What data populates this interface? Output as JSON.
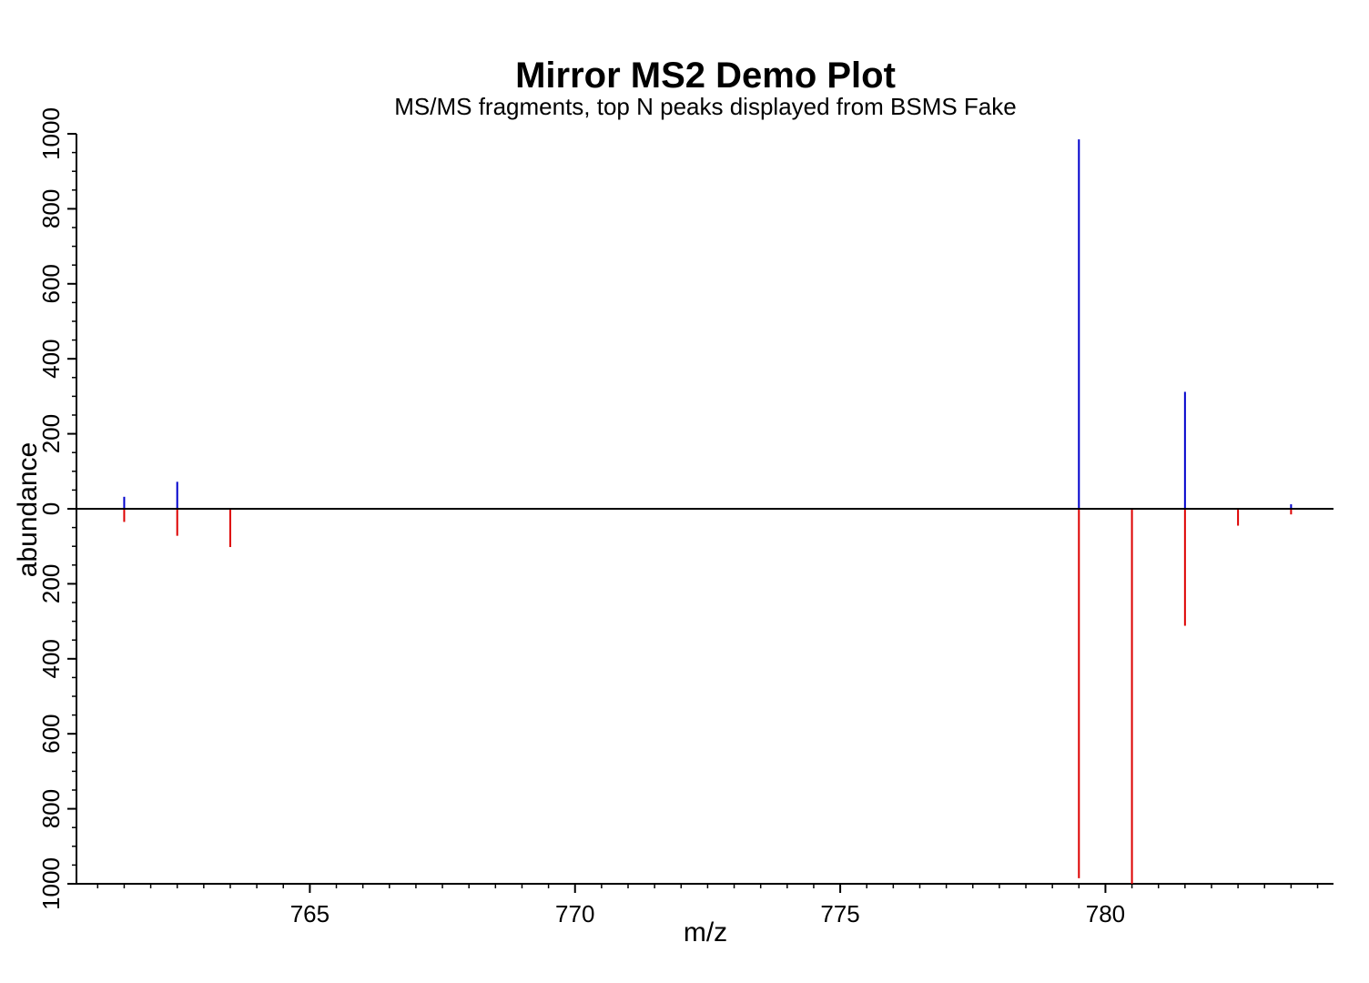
{
  "chart_data": {
    "type": "bar",
    "title": "Mirror MS2 Demo Plot",
    "subtitle": "MS/MS fragments, top N peaks displayed from BSMS Fake",
    "xlabel": "m/z",
    "ylabel": "abundance",
    "xlim": [
      760.6,
      784.3
    ],
    "ylim": [
      -1000,
      1000
    ],
    "x_major_ticks": [
      765,
      770,
      775,
      780
    ],
    "x_minor_step": 0.5,
    "y_tick_values": [
      1000,
      800,
      600,
      400,
      200,
      0,
      -200,
      -400,
      -600,
      -800,
      -1000
    ],
    "y_tick_labels": [
      "1000",
      "800",
      "600",
      "400",
      "200",
      "0",
      "200",
      "400",
      "600",
      "800",
      "1000"
    ],
    "y_minor_step": 50,
    "grid": false,
    "series": [
      {
        "color": "#0000cc",
        "direction": "up",
        "x": [
          761.5,
          762.5,
          779.5,
          781.5,
          783.5
        ],
        "values": [
          32,
          72,
          985,
          312,
          12
        ]
      },
      {
        "color": "#dd0000",
        "direction": "down",
        "x": [
          761.5,
          762.5,
          763.5,
          779.5,
          780.5,
          781.5,
          782.5,
          783.5
        ],
        "values": [
          -35,
          -72,
          -102,
          -985,
          -1000,
          -312,
          -45,
          -15
        ]
      }
    ]
  }
}
